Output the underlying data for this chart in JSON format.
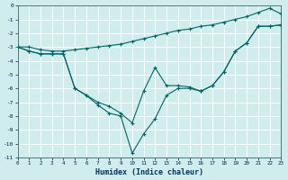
{
  "xlabel": "Humidex (Indice chaleur)",
  "background_color": "#d0ecec",
  "line_color": "#006666",
  "x_values": [
    0,
    1,
    2,
    3,
    4,
    5,
    6,
    7,
    8,
    9,
    10,
    11,
    12,
    13,
    14,
    15,
    16,
    17,
    18,
    19,
    20,
    21,
    22,
    23
  ],
  "upper_line": [
    -3.0,
    -3.0,
    -3.2,
    -3.3,
    -3.3,
    -3.2,
    -3.1,
    -3.0,
    -2.9,
    -2.8,
    -2.6,
    -2.4,
    -2.2,
    -2.0,
    -1.8,
    -1.7,
    -1.5,
    -1.4,
    -1.2,
    -1.0,
    -0.8,
    -0.5,
    -0.2,
    -0.6
  ],
  "middle_line": [
    -3.0,
    -3.3,
    -3.5,
    -3.5,
    -3.5,
    -6.0,
    -6.5,
    -7.0,
    -7.3,
    -7.8,
    -8.5,
    -6.2,
    -4.5,
    -5.8,
    -5.8,
    -5.9,
    -6.2,
    -5.8,
    -4.8,
    -3.3,
    -2.7,
    -1.5,
    -1.5,
    -1.4
  ],
  "lower_line": [
    -3.0,
    -3.3,
    -3.5,
    -3.5,
    -3.5,
    -6.0,
    -6.5,
    -7.2,
    -7.8,
    -8.0,
    -10.7,
    -9.3,
    -8.2,
    -6.5,
    -6.0,
    -6.0,
    -6.2,
    -5.8,
    -4.8,
    -3.3,
    -2.7,
    -1.5,
    -1.5,
    -1.4
  ],
  "xlim": [
    0,
    23
  ],
  "ylim": [
    -11,
    0
  ],
  "xticks": [
    0,
    1,
    2,
    3,
    4,
    5,
    6,
    7,
    8,
    9,
    10,
    11,
    12,
    13,
    14,
    15,
    16,
    17,
    18,
    19,
    20,
    21,
    22,
    23
  ],
  "yticks": [
    0,
    -1,
    -2,
    -3,
    -4,
    -5,
    -6,
    -7,
    -8,
    -9,
    -10,
    -11
  ],
  "tick_fontsize": 5.0,
  "xlabel_fontsize": 6.0
}
